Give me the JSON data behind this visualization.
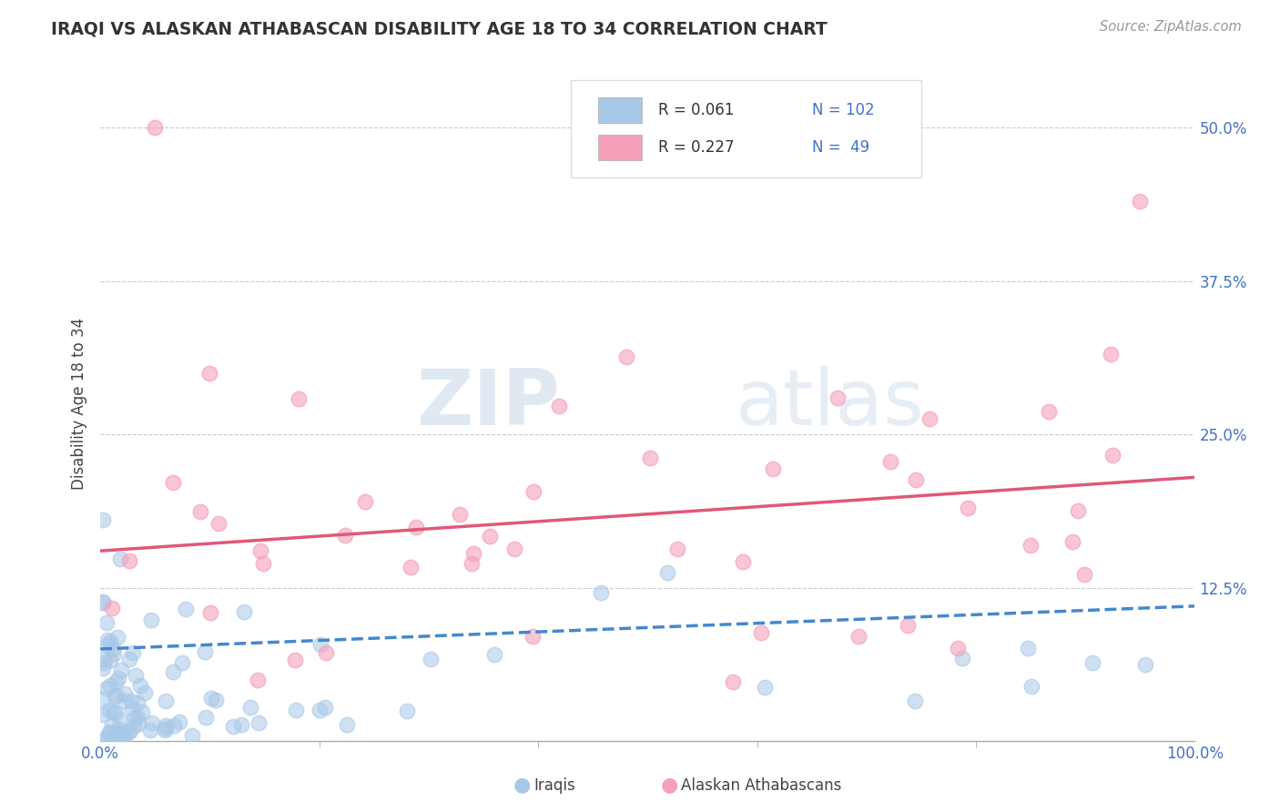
{
  "title": "IRAQI VS ALASKAN ATHABASCAN DISABILITY AGE 18 TO 34 CORRELATION CHART",
  "source_text": "Source: ZipAtlas.com",
  "ylabel": "Disability Age 18 to 34",
  "xlim": [
    0,
    100
  ],
  "ylim": [
    0,
    55
  ],
  "ytick_vals": [
    12.5,
    25.0,
    37.5,
    50.0
  ],
  "yticklabels": [
    "12.5%",
    "25.0%",
    "37.5%",
    "50.0%"
  ],
  "xticklabels": [
    "0.0%",
    "100.0%"
  ],
  "legend_label1": "Iraqis",
  "legend_label2": "Alaskan Athabascans",
  "watermark_zip": "ZIP",
  "watermark_atlas": "atlas",
  "iraqis_color": "#a8c8e8",
  "athabascan_color": "#f4a0b8",
  "iraqis_line_color": "#4488cc",
  "athabascan_line_color": "#e05878",
  "background_color": "#ffffff",
  "grid_color": "#cccccc",
  "title_color": "#333333",
  "tick_color": "#4472c4",
  "legend_text_color": "#333333",
  "legend_num_color": "#4472c4",
  "Iraqi_trend_y0": 7.5,
  "Iraqi_trend_y1": 11.0,
  "Ath_trend_y0": 15.5,
  "Ath_trend_y1": 21.5
}
